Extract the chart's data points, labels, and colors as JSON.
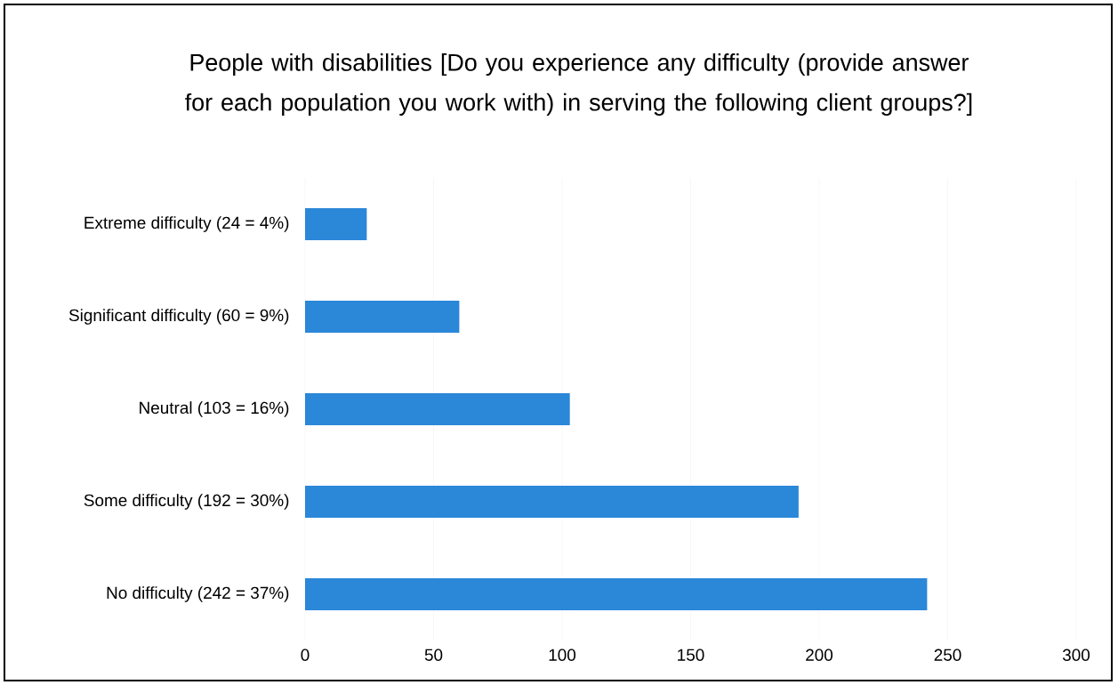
{
  "chart_data": {
    "type": "bar",
    "orientation": "horizontal",
    "title": "People with disabilities [Do you experience any difficulty (provide answer for each population you work with) in serving the following client groups?]",
    "categories": [
      "Extreme difficulty (24 = 4%)",
      "Significant difficulty (60 = 9%)",
      "Neutral (103 = 16%)",
      "Some difficulty (192 = 30%)",
      "No difficulty (242 = 37%)"
    ],
    "values": [
      24,
      60,
      103,
      192,
      242
    ],
    "color": "#2b87d8",
    "xlim": [
      0,
      300
    ],
    "xticks": [
      0,
      50,
      100,
      150,
      200,
      250,
      300
    ],
    "grid": "x"
  }
}
